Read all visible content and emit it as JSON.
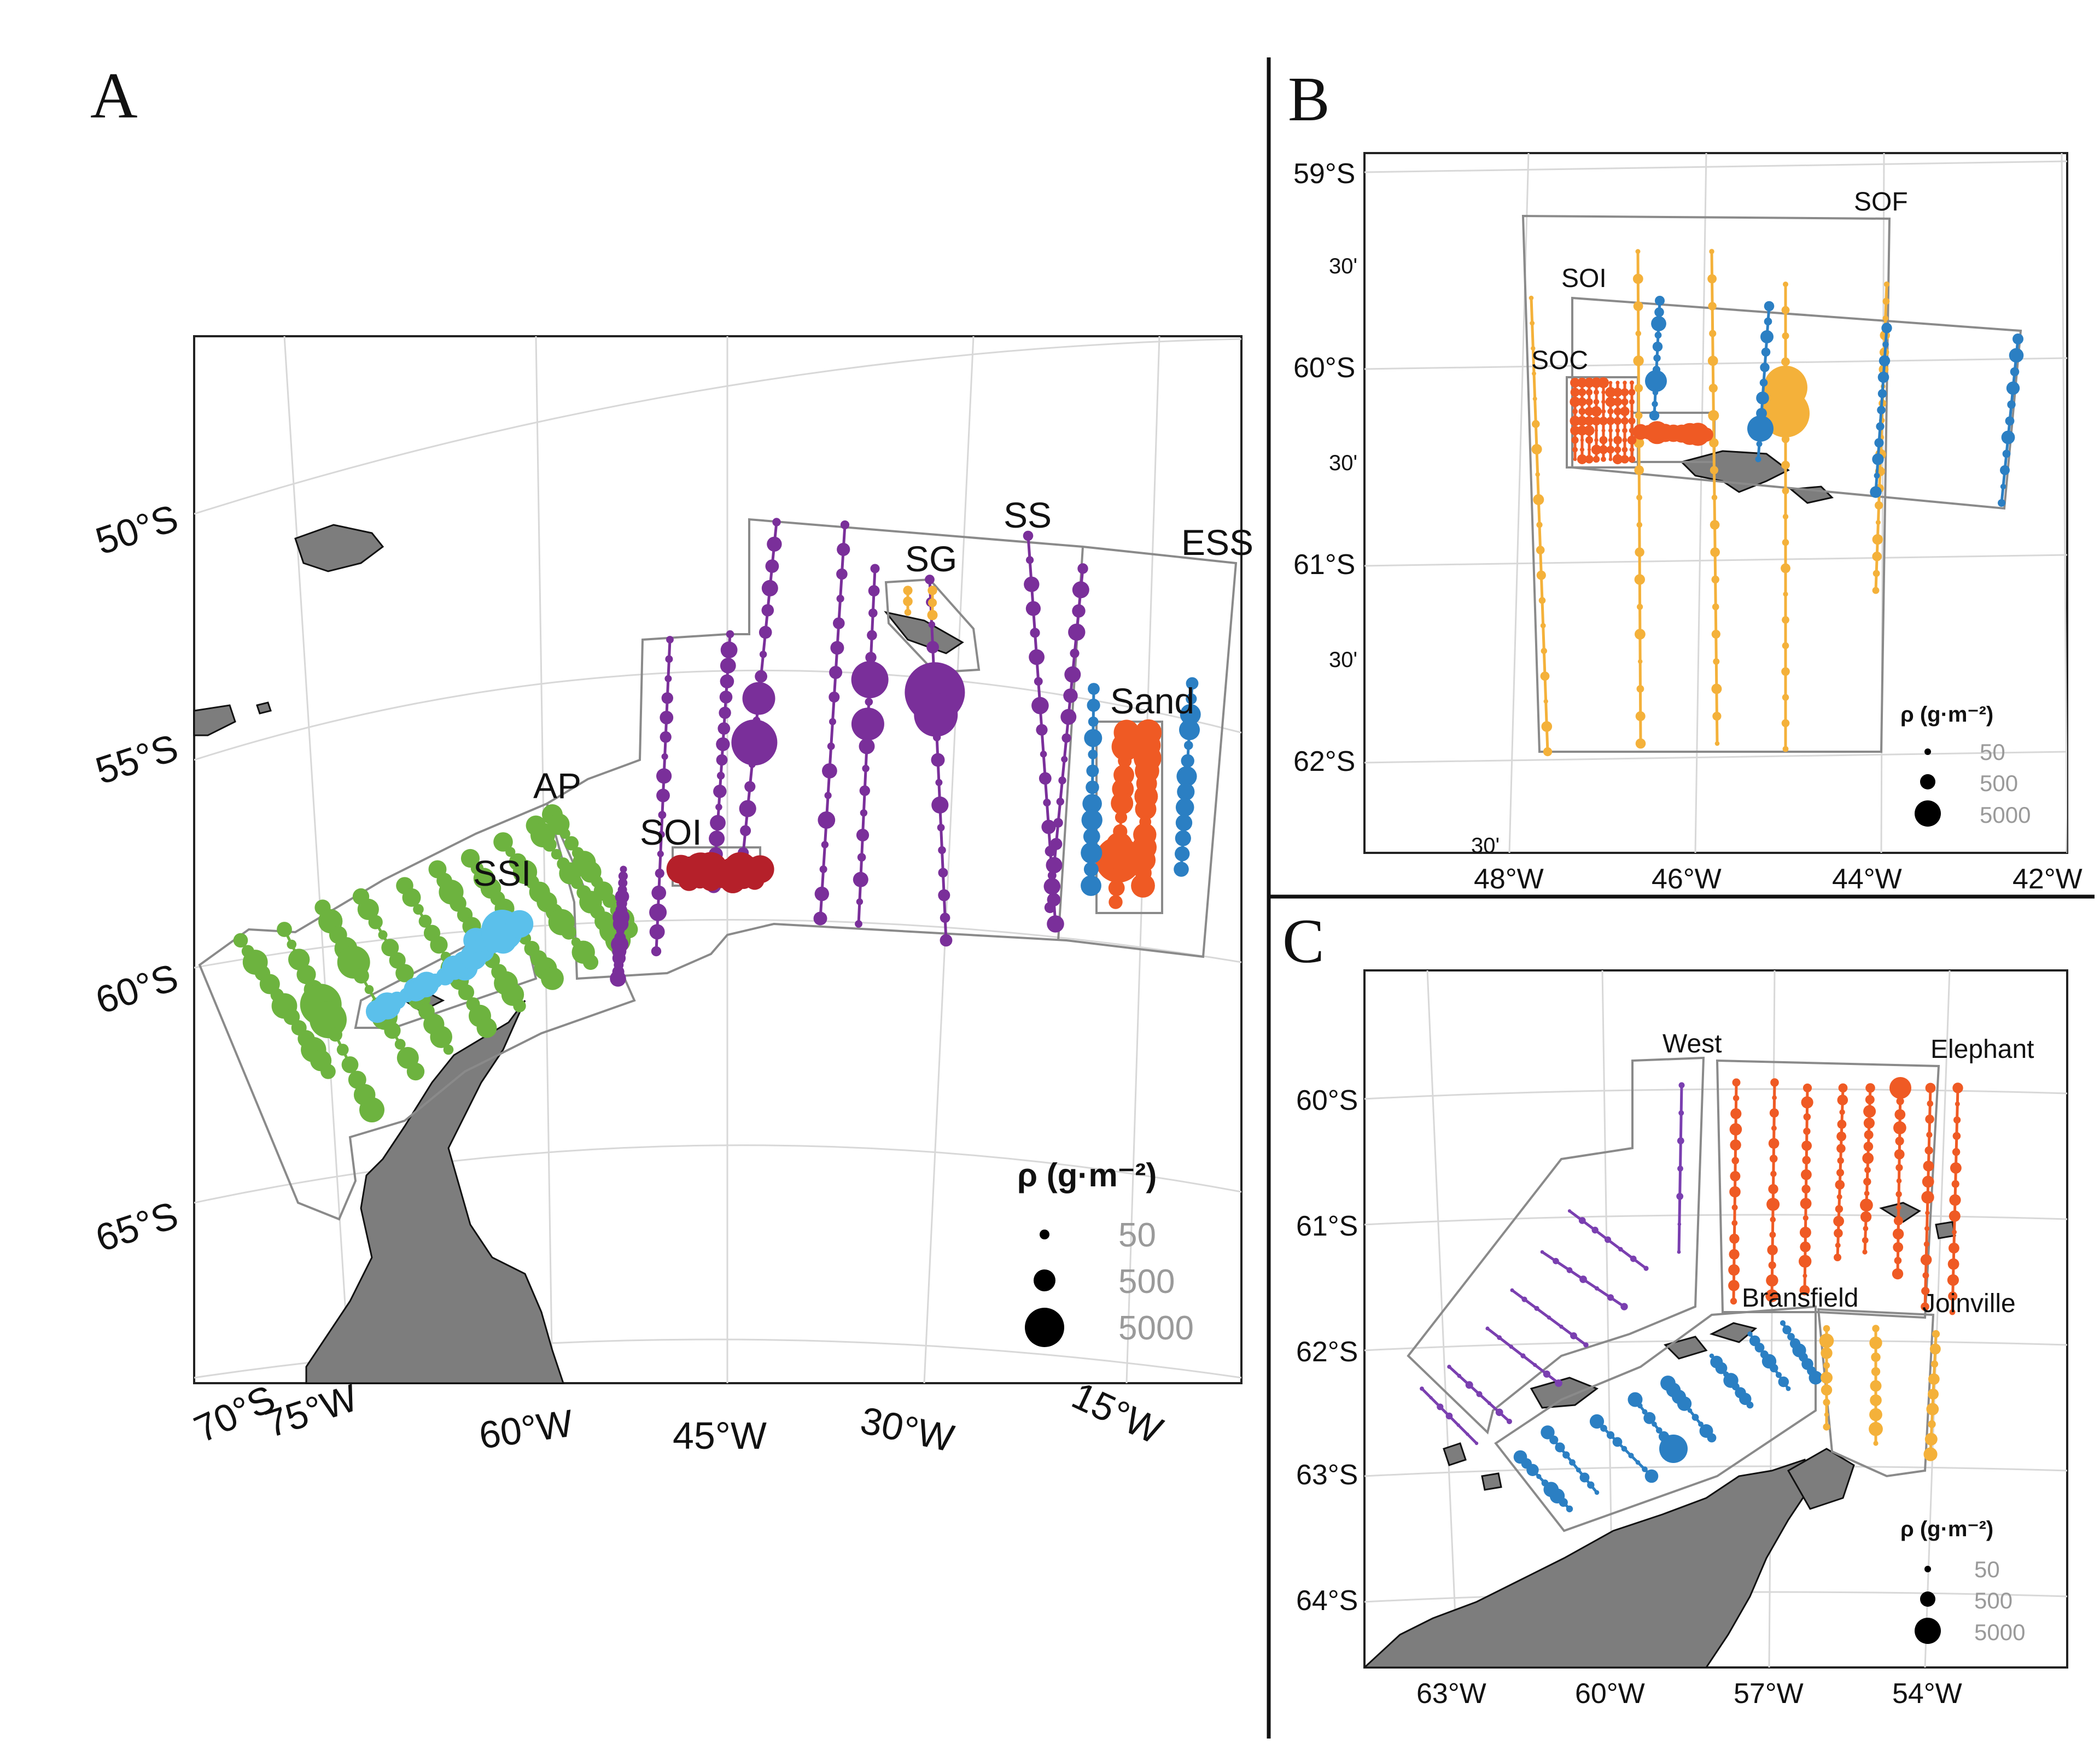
{
  "panels": {
    "A": {
      "label": "A",
      "lat_labels": [
        "50°S",
        "55°S",
        "60°S",
        "65°S",
        "70°S"
      ],
      "lon_labels": [
        "75°W",
        "60°W",
        "45°W",
        "30°W",
        "15°W"
      ],
      "region_labels": [
        "SS",
        "ESS",
        "SG",
        "Sand",
        "AP",
        "SOI",
        "SSI"
      ],
      "legend": {
        "title": "ρ (g·m⁻²)",
        "values": [
          50,
          500,
          5000
        ]
      }
    },
    "B": {
      "label": "B",
      "lat_labels": [
        "59°S",
        "30'",
        "60°S",
        "30'",
        "61°S",
        "30'",
        "62°S"
      ],
      "lon_labels": [
        "48°W",
        "46°W",
        "44°W",
        "42°W"
      ],
      "extra_tick": "30'",
      "region_labels": [
        "SOF",
        "SOI",
        "SOC"
      ],
      "legend": {
        "title": "ρ (g·m⁻²)",
        "values": [
          50,
          500,
          5000
        ]
      }
    },
    "C": {
      "label": "C",
      "lat_labels": [
        "60°S",
        "61°S",
        "62°S",
        "63°S",
        "64°S"
      ],
      "lon_labels": [
        "63°W",
        "60°W",
        "57°W",
        "54°W"
      ],
      "region_labels": [
        "West",
        "Elephant",
        "Bransfield",
        "Joinville"
      ],
      "legend": {
        "title": "ρ (g·m⁻²)",
        "values": [
          50,
          500,
          5000
        ]
      }
    }
  },
  "colors": {
    "AP": "#6db33f",
    "SSI": "#5bc0eb",
    "SS": "#7a2f9a",
    "SOI_A": "#b5202a",
    "Sand": "#ef5a24",
    "ESS": "#2b7fc3",
    "SG": "#f4b13a",
    "SOF": "#f4b13a",
    "SOI_B": "#ef5a24",
    "SOC": "#ef5a24",
    "West": "#7a3fb0",
    "Elephant": "#ef5a24",
    "Bransfield": "#2b7fc3",
    "Joinville": "#f4b13a",
    "legend_text": "#9a9a9a"
  }
}
